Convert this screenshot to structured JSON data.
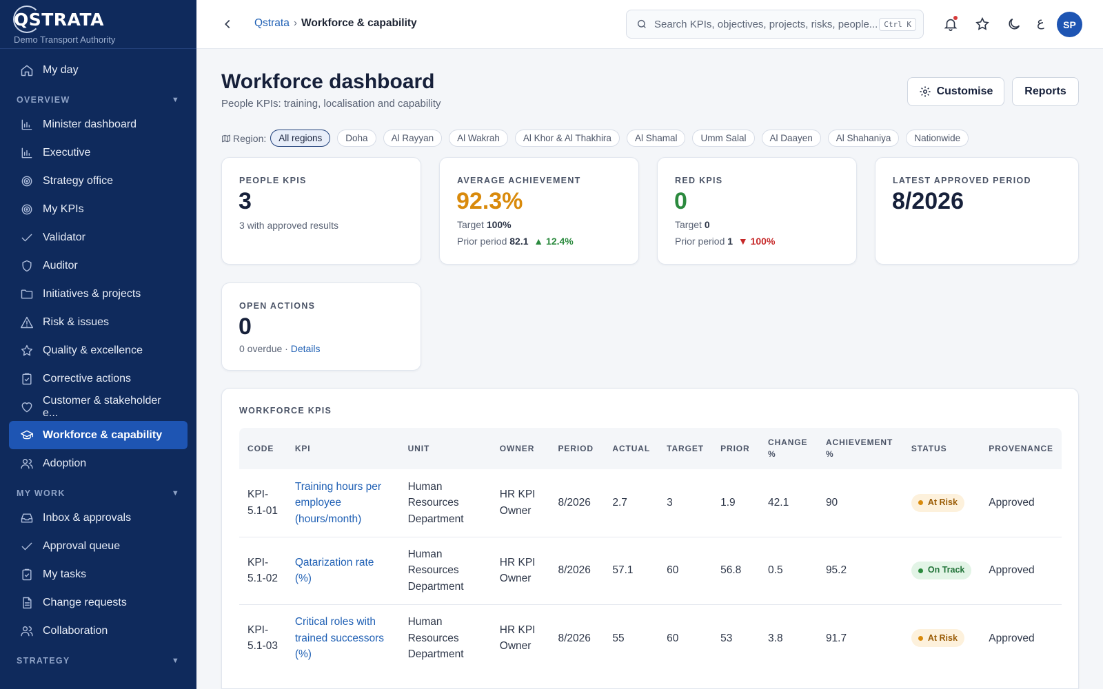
{
  "app": {
    "brand": "QSTRATA",
    "org": "Demo Transport Authority"
  },
  "sidebar": {
    "top_item": {
      "label": "My day",
      "icon": "home-icon"
    },
    "sections": [
      {
        "title": "OVERVIEW",
        "items": [
          {
            "label": "Minister dashboard",
            "icon": "bar-chart-icon"
          },
          {
            "label": "Executive",
            "icon": "bar-chart-icon"
          },
          {
            "label": "Strategy office",
            "icon": "target-icon"
          },
          {
            "label": "My KPIs",
            "icon": "target-icon"
          },
          {
            "label": "Validator",
            "icon": "check-icon"
          },
          {
            "label": "Auditor",
            "icon": "shield-icon"
          },
          {
            "label": "Initiatives & projects",
            "icon": "folder-icon"
          },
          {
            "label": "Risk & issues",
            "icon": "warning-icon"
          },
          {
            "label": "Quality & excellence",
            "icon": "star-icon"
          },
          {
            "label": "Corrective actions",
            "icon": "clipboard-check-icon"
          },
          {
            "label": "Customer & stakeholder e...",
            "icon": "heart-icon"
          },
          {
            "label": "Workforce & capability",
            "icon": "graduation-cap-icon",
            "active": true
          },
          {
            "label": "Adoption",
            "icon": "users-icon"
          }
        ]
      },
      {
        "title": "MY WORK",
        "items": [
          {
            "label": "Inbox & approvals",
            "icon": "inbox-icon"
          },
          {
            "label": "Approval queue",
            "icon": "check-icon"
          },
          {
            "label": "My tasks",
            "icon": "clipboard-check-icon"
          },
          {
            "label": "Change requests",
            "icon": "document-icon"
          },
          {
            "label": "Collaboration",
            "icon": "users-icon"
          }
        ]
      },
      {
        "title": "STRATEGY",
        "items": []
      }
    ]
  },
  "topbar": {
    "breadcrumb_root": "Qstrata",
    "breadcrumb_sep": "›",
    "breadcrumb_current": "Workforce & capability",
    "search_placeholder": "Search KPIs, objectives, projects, risks, people...",
    "search_shortcut": "Ctrl K",
    "lang_toggle": "ع",
    "avatar_initials": "SP"
  },
  "page": {
    "title": "Workforce dashboard",
    "subtitle": "People KPIs: training, localisation and capability",
    "customise_label": "Customise",
    "reports_label": "Reports",
    "region_label": "Region:",
    "regions": [
      "All regions",
      "Doha",
      "Al Rayyan",
      "Al Wakrah",
      "Al Khor & Al Thakhira",
      "Al Shamal",
      "Umm Salal",
      "Al Daayen",
      "Al Shahaniya",
      "Nationwide"
    ],
    "active_region": "All regions"
  },
  "cards": {
    "people_kpis": {
      "label": "PEOPLE KPIS",
      "value": "3",
      "note": "3 with approved results"
    },
    "avg_achievement": {
      "label": "AVERAGE ACHIEVEMENT",
      "value": "92.3%",
      "target_label": "Target",
      "target_value": "100%",
      "prior_label": "Prior period",
      "prior_value": "82.1",
      "delta": "▲ 12.4%"
    },
    "red_kpis": {
      "label": "RED KPIS",
      "value": "0",
      "target_label": "Target",
      "target_value": "0",
      "prior_label": "Prior period",
      "prior_value": "1",
      "delta": "▼ 100%"
    },
    "latest_period": {
      "label": "LATEST APPROVED PERIOD",
      "value": "8/2026"
    },
    "open_actions": {
      "label": "OPEN ACTIONS",
      "value": "0",
      "note": "0 overdue · ",
      "details_link": "Details"
    }
  },
  "table": {
    "title": "WORKFORCE KPIS",
    "headers": [
      "CODE",
      "KPI",
      "UNIT",
      "OWNER",
      "PERIOD",
      "ACTUAL",
      "TARGET",
      "PRIOR",
      "CHANGE %",
      "ACHIEVEMENT %",
      "STATUS",
      "PROVENANCE"
    ],
    "rows": [
      {
        "code": "KPI-5.1-01",
        "kpi": "Training hours per employee (hours/month)",
        "unit": "Human Resources Department",
        "owner": "HR KPI Owner",
        "period": "8/2026",
        "actual": "2.7",
        "target": "3",
        "prior": "1.9",
        "change": "42.1",
        "achievement": "90",
        "status": "At Risk",
        "provenance": "Approved"
      },
      {
        "code": "KPI-5.1-02",
        "kpi": "Qatarization rate (%)",
        "unit": "Human Resources Department",
        "owner": "HR KPI Owner",
        "period": "8/2026",
        "actual": "57.1",
        "target": "60",
        "prior": "56.8",
        "change": "0.5",
        "achievement": "95.2",
        "status": "On Track",
        "provenance": "Approved"
      },
      {
        "code": "KPI-5.1-03",
        "kpi": "Critical roles with trained successors (%)",
        "unit": "Human Resources Department",
        "owner": "HR KPI Owner",
        "period": "8/2026",
        "actual": "55",
        "target": "60",
        "prior": "53",
        "change": "3.8",
        "achievement": "91.7",
        "status": "At Risk",
        "provenance": "Approved"
      }
    ]
  },
  "colors": {
    "sidebar_bg": "#0f2a5c",
    "active_nav": "#1e55b3",
    "link": "#1e5fb4",
    "achievement_amber": "#d98a0b",
    "good_green": "#2b8a3e",
    "bad_red": "#c62828"
  }
}
